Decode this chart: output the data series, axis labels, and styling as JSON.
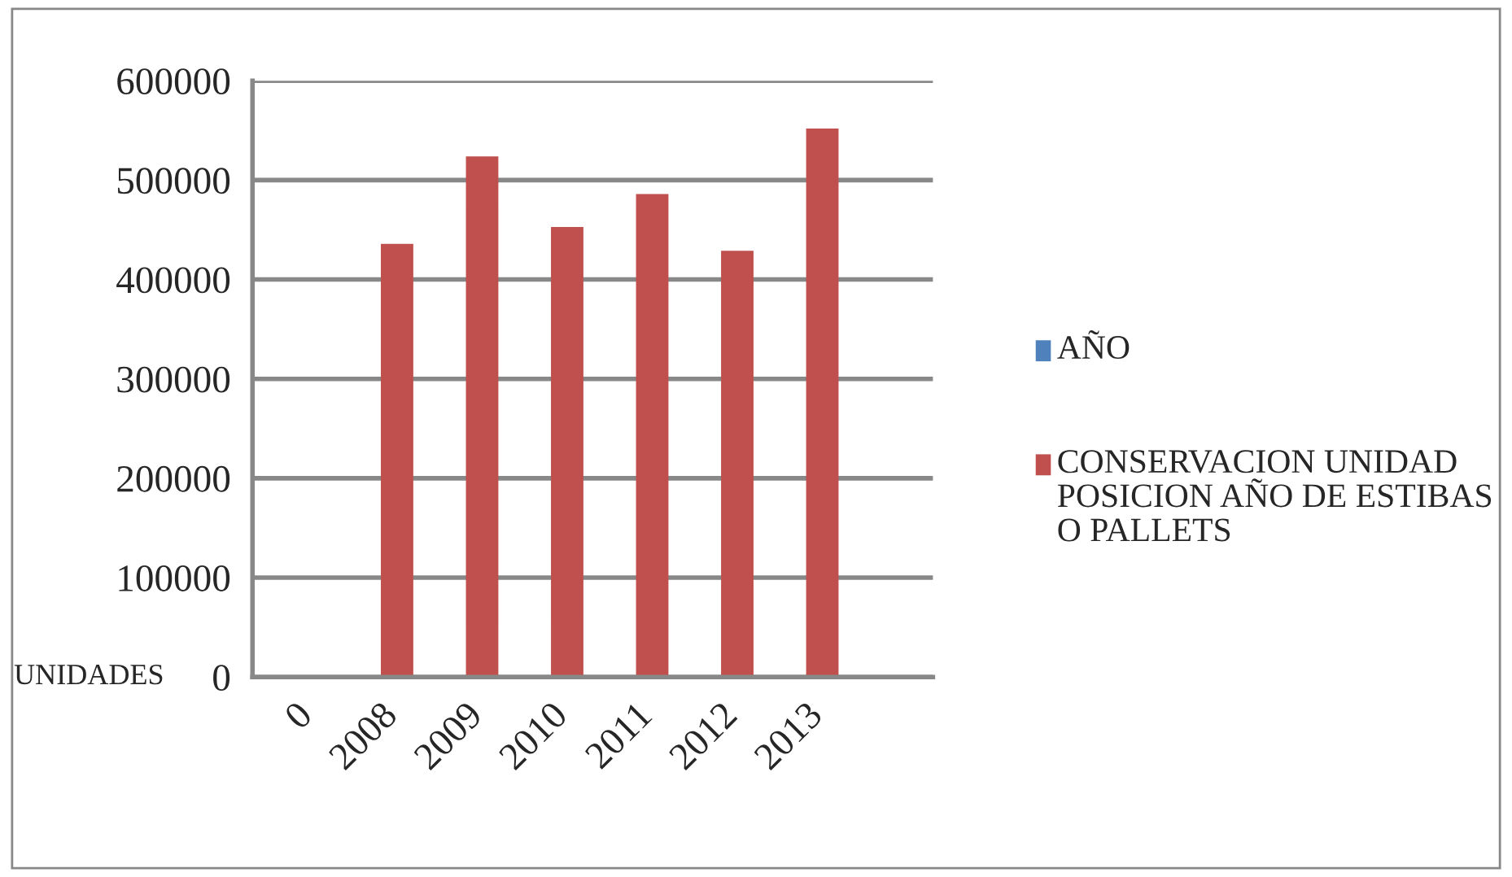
{
  "chart_data": {
    "type": "bar",
    "ylabel": "UNIDADES",
    "categories": [
      "0",
      "2008",
      "2009",
      "2010",
      "2011",
      "2012",
      "2013",
      null
    ],
    "series": [
      {
        "name": "AÑO",
        "color": "#4f81bd",
        "values": [
          0,
          0,
          0,
          0,
          0,
          0,
          0,
          null
        ]
      },
      {
        "name": "CONSERVACION UNIDAD POSICION AÑO DE ESTIBAS O PALLETS",
        "color": "#c0504d",
        "values": [
          0,
          435000,
          523000,
          452000,
          485000,
          428000,
          551000,
          null
        ]
      }
    ],
    "ylim": [
      0,
      600000
    ],
    "yticks": [
      0,
      100000,
      200000,
      300000,
      400000,
      500000,
      600000
    ],
    "grid": "y",
    "legend": "right"
  }
}
